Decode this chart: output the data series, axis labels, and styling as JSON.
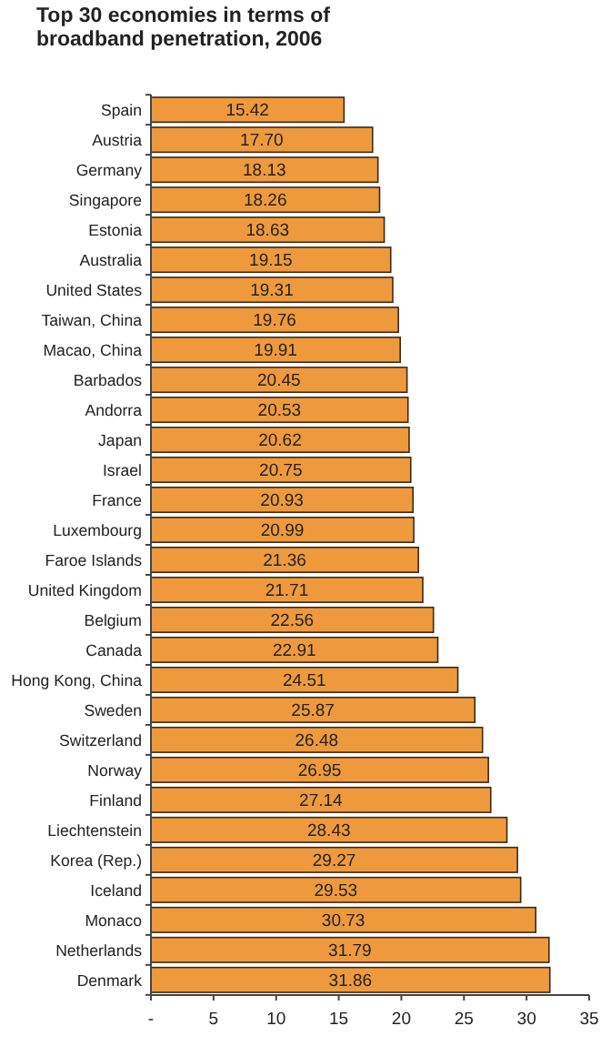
{
  "chart_data": {
    "type": "bar",
    "orientation": "horizontal",
    "title": "Top 30 economies in terms of broadband penetration, 2006",
    "categories": [
      "Spain",
      "Austria",
      "Germany",
      "Singapore",
      "Estonia",
      "Australia",
      "United States",
      "Taiwan, China",
      "Macao, China",
      "Barbados",
      "Andorra",
      "Japan",
      "Israel",
      "France",
      "Luxembourg",
      "Faroe Islands",
      "United Kingdom",
      "Belgium",
      "Canada",
      "Hong Kong, China",
      "Sweden",
      "Switzerland",
      "Norway",
      "Finland",
      "Liechtenstein",
      "Korea (Rep.)",
      "Iceland",
      "Monaco",
      "Netherlands",
      "Denmark"
    ],
    "values": [
      15.42,
      17.7,
      18.13,
      18.26,
      18.63,
      19.15,
      19.31,
      19.76,
      19.91,
      20.45,
      20.53,
      20.62,
      20.75,
      20.93,
      20.99,
      21.36,
      21.71,
      22.56,
      22.91,
      24.51,
      25.87,
      26.48,
      26.95,
      27.14,
      28.43,
      29.27,
      29.53,
      30.73,
      31.79,
      31.86
    ],
    "value_labels": [
      "15.42",
      "17.70",
      "18.13",
      "18.26",
      "18.63",
      "19.15",
      "19.31",
      "19.76",
      "19.91",
      "20.45",
      "20.53",
      "20.62",
      "20.75",
      "20.93",
      "20.99",
      "21.36",
      "21.71",
      "22.56",
      "22.91",
      "24.51",
      "25.87",
      "26.48",
      "26.95",
      "27.14",
      "28.43",
      "29.27",
      "29.53",
      "30.73",
      "31.79",
      "31.86"
    ],
    "color": "#ee9a3c",
    "xlim": [
      0,
      35
    ],
    "xticks": [
      {
        "value": 0,
        "label": "-"
      },
      5,
      10,
      15,
      20,
      25,
      30,
      35
    ],
    "grid": false
  }
}
